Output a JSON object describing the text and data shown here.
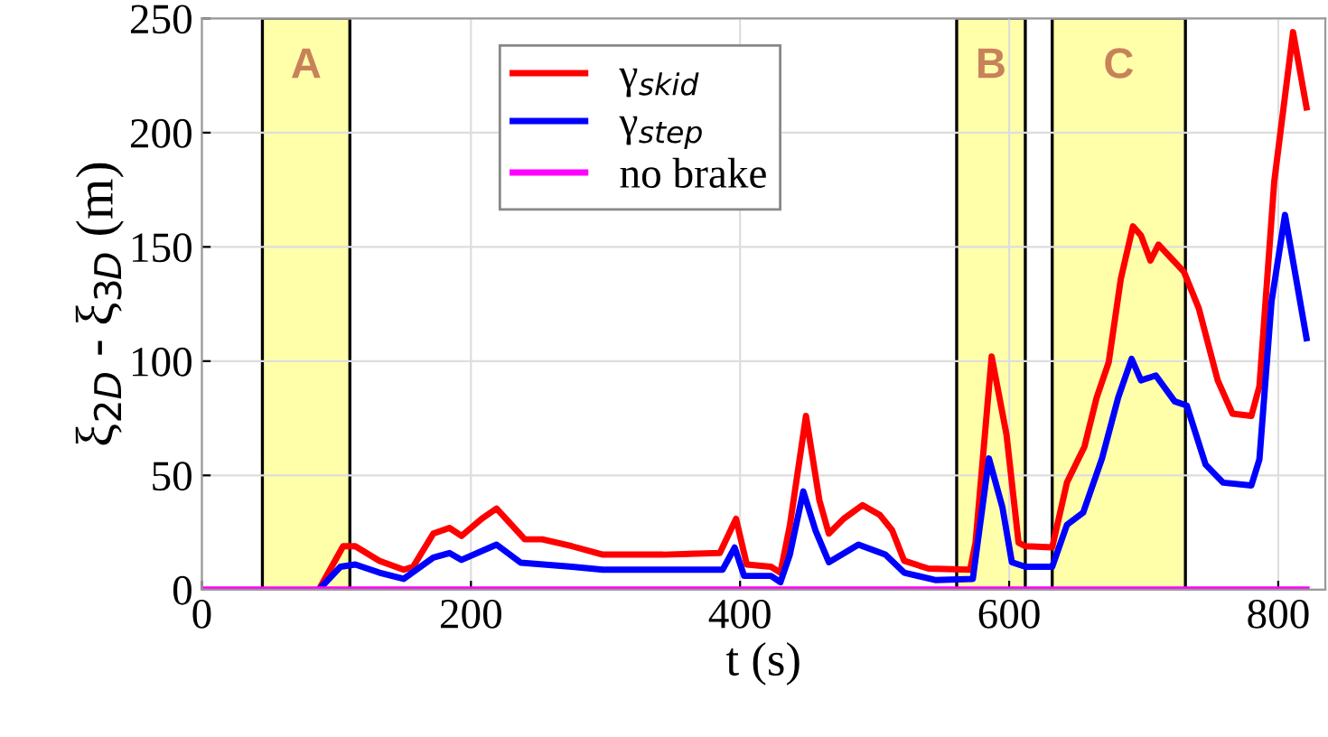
{
  "chart_data": {
    "type": "line",
    "xlabel": "t (s)",
    "ylabel": "ξ$_{2D}$ - ξ$_{3D}$ (m)",
    "xlim": [
      0,
      835
    ],
    "xticks": [
      0,
      200,
      400,
      600,
      800
    ],
    "ylim": [
      0,
      250
    ],
    "yticks": [
      0,
      50,
      100,
      150,
      200,
      250
    ],
    "grid": true,
    "legend": "top",
    "line_style": "solid",
    "marker": "none",
    "bands": [
      {
        "axis": "x",
        "from": 45,
        "to": 110,
        "label": "A",
        "color": "#ffffaa"
      },
      {
        "axis": "x",
        "from": 561,
        "to": 612,
        "label": "B",
        "color": "#ffffaa"
      },
      {
        "axis": "x",
        "from": 632,
        "to": 731,
        "label": "C",
        "color": "#ffffaa"
      }
    ],
    "series": [
      {
        "name": "γ$_{skid}$",
        "color": "#ff0000",
        "x": [
          87,
          105,
          114,
          132,
          150,
          157,
          172,
          184,
          193,
          208,
          219,
          226,
          240,
          253,
          275,
          298,
          343,
          385,
          397,
          405,
          423,
          430,
          437,
          449,
          459,
          466,
          477,
          491,
          504,
          513,
          522,
          540,
          571,
          575,
          587,
          598,
          607,
          612,
          632,
          643,
          656,
          665,
          674,
          683,
          692,
          698,
          705,
          711,
          730,
          741,
          755,
          766,
          780,
          786,
          797,
          811,
          821
        ],
        "values": [
          0,
          19,
          19,
          12.6,
          8.7,
          10,
          24.5,
          27,
          23.5,
          31,
          35.5,
          31,
          22,
          22,
          19,
          15.3,
          15.3,
          16,
          31,
          11,
          10,
          7.4,
          28,
          76,
          39,
          24.5,
          31,
          37,
          32.6,
          26,
          12.6,
          9.2,
          8.7,
          20.5,
          102,
          68,
          20.5,
          19,
          18.5,
          47,
          62.6,
          84,
          99.5,
          136,
          159,
          155,
          144,
          151,
          139,
          123,
          91.6,
          77,
          76,
          89,
          178.5,
          244,
          211
        ]
      },
      {
        "name": "γ$_{step}$",
        "color": "#0000ff",
        "x": [
          87,
          103,
          114,
          132,
          150,
          172,
          184,
          193,
          219,
          237,
          275,
          298,
          387,
          396,
          403,
          423,
          430,
          437,
          447,
          456,
          466,
          488,
          508,
          522,
          545,
          573,
          585,
          595,
          602,
          612,
          632,
          643,
          655,
          669,
          681,
          691,
          698,
          709,
          723,
          732,
          746,
          759,
          780,
          786,
          795,
          805,
          821
        ],
        "values": [
          0,
          10,
          11,
          7.4,
          4.7,
          14,
          16,
          13,
          19.7,
          11.8,
          10,
          8.7,
          8.7,
          18.4,
          6,
          6,
          3.2,
          15.3,
          43,
          26,
          12,
          19.7,
          15.3,
          7.4,
          4.2,
          4.7,
          57.4,
          36,
          12,
          10,
          10,
          28.4,
          33.7,
          57.4,
          84,
          101,
          91.6,
          93.7,
          82.4,
          80.6,
          54.7,
          46.8,
          45.6,
          57,
          126,
          164,
          110
        ]
      },
      {
        "name": "no brake",
        "color": "#ff00ff",
        "x": [
          0,
          821
        ],
        "values": [
          0,
          0
        ]
      }
    ]
  }
}
